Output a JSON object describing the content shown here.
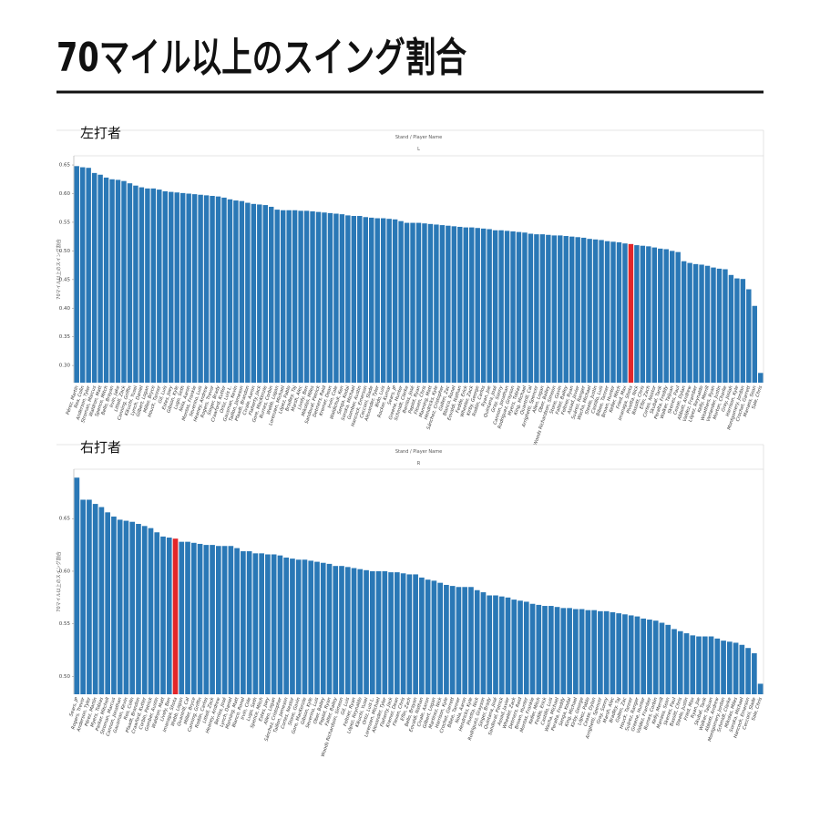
{
  "title": "70マイル以上のスイング割合",
  "chart_data": [
    {
      "type": "bar",
      "panel_label": "左打者",
      "header": "Stand / Player Name",
      "header_value": "L",
      "ylabel": "70マイル以上のスイング割合",
      "color": "#2a78b6",
      "highlight": "Imanaga, Shota",
      "highlight_color": "#e3262a",
      "ylim": [
        0.27,
        0.666
      ],
      "yticks": [
        {
          "value": 0.3,
          "label": "0.30"
        },
        0.35,
        {
          "value": 0.4,
          "label": "0.40"
        },
        0.45,
        {
          "value": 0.5,
          "label": "0.50"
        },
        0.55,
        {
          "value": 0.6,
          "label": "0.60"
        },
        0.65
      ],
      "categories": [
        "Pérez, Martín",
        "Rea, Colin",
        "Anderson, Tyler",
        "Stroman, Marcus",
        "Waldron, Matt",
        "Spence, Mitch",
        "Bello, Brayan",
        "Irvin, Jake",
        "Littell, Zack",
        "Canning, Griffin",
        "Kikuchi, Yusei",
        "Lynch, Daniel",
        "Gilbert, Logan",
        "Miller, Bryce",
        "Houck, Tanner",
        "Gil, Luis",
        "Estes, Joey",
        "Gibson, Kyle",
        "Lugo, Seth",
        "Nola, Aaron",
        "Montas, Frankie",
        "Severino, Luis",
        "Heaney, Andrew",
        "Rogers, Trevor",
        "Singer, Brady",
        "Crawford, Kutter",
        "Ortiz, Luis L.",
        "Gausman, Kevin",
        "Taillon, Jameson",
        "Pfaadt, Brandon",
        "Civale, Aaron",
        "Flaherty, Jack",
        "Gore, MacKenzie",
        "Burnes, Corbin",
        "Webb, Logan",
        "Lorenzen, Michael",
        "López, Pablo",
        "Bradley, Taj",
        "Marsh, Alec",
        "Lively, Ben",
        "Mikolas, Miles",
        "Sandoval, Patrick",
        "Detmers, Reid",
        "Kremer, Dean",
        "Irvin, Cole",
        "Waldichuk, Ken",
        "Senga, Kodai",
        "Soroka, Michael",
        "Gomber, Austin",
        "Hancock, Emerson",
        "Cecconi, Slade",
        "Alexander, Tyler",
        "Bido, Luis",
        "Rocker, Kumar",
        "Sears, JP",
        "Greene, Hunter",
        "Schmidt, Clarke",
        "Berríos, José",
        "Pepiot, Ryan",
        "Flexen, Chris",
        "Manning, Matt",
        "Hendricks, Kyle",
        "Sánchez, Cristopher",
        "Gallen, Zac",
        "Blanco, Ronel",
        "Eovaldi, Nathan",
        "Fedde, Erick",
        "Wheeler, Zack",
        "Kirby, George",
        "Rodón, Carlos",
        "Ryan, Joe",
        "Quintana, José",
        "Gray, Sonny",
        "Cannon, Jonathan",
        "Rodriguez, Grayson",
        "Myers, Tobias",
        "King, Michael",
        "Quantrill, Cal",
        "Arrighetti, Spencer",
        "Allen, Logan",
        "Ober, Bailey",
        "Woods Richardson, Simeon",
        "Stone, Gavin",
        "Falter, Bailey",
        "Feltner, Ryan",
        "Assad, Javier",
        "Suárez, Ranger",
        "Wacha, Michael",
        "Steele, Justin",
        "Castillo, Luis",
        "Bibee, Tanner",
        "Brown, Hunter",
        "Keller, Mitch",
        "Fried, Max",
        "Imanaga, Shota",
        "Pivetta, Nick",
        "Bassitt, Chris",
        "Eflin, Zach",
        "Cortes, Nestor",
        "Skubal, Tarik",
        "Peralta, Freddy",
        "Walker, Taijuan",
        "Skenes, Paul",
        "Cease, Dylan",
        "Abbott, Andrew",
        "Valdez, Framber",
        "López, Reynaldo",
        "Kelly, Merrill",
        "Weathers, Ryan",
        "Verlander, Justin",
        "Morton, Charlie",
        "Gray, Josiah",
        "Harrison, Kyle",
        "Montgomery, Jordan",
        "Crochet, Garrett",
        "Manaea, Sean",
        "Sale, Chris"
      ],
      "values": [
        0.648,
        0.646,
        0.645,
        0.636,
        0.633,
        0.628,
        0.625,
        0.624,
        0.622,
        0.618,
        0.614,
        0.611,
        0.609,
        0.609,
        0.607,
        0.604,
        0.603,
        0.602,
        0.601,
        0.6,
        0.599,
        0.598,
        0.597,
        0.596,
        0.595,
        0.593,
        0.59,
        0.588,
        0.587,
        0.584,
        0.582,
        0.581,
        0.58,
        0.577,
        0.572,
        0.571,
        0.571,
        0.571,
        0.57,
        0.57,
        0.569,
        0.568,
        0.567,
        0.566,
        0.565,
        0.564,
        0.562,
        0.561,
        0.561,
        0.559,
        0.558,
        0.557,
        0.557,
        0.556,
        0.555,
        0.552,
        0.549,
        0.549,
        0.549,
        0.548,
        0.547,
        0.546,
        0.545,
        0.544,
        0.543,
        0.542,
        0.541,
        0.541,
        0.54,
        0.539,
        0.538,
        0.536,
        0.536,
        0.535,
        0.534,
        0.533,
        0.532,
        0.53,
        0.529,
        0.529,
        0.528,
        0.527,
        0.527,
        0.526,
        0.525,
        0.524,
        0.523,
        0.521,
        0.52,
        0.519,
        0.517,
        0.516,
        0.515,
        0.513,
        0.512,
        0.51,
        0.509,
        0.508,
        0.506,
        0.504,
        0.503,
        0.5,
        0.498,
        0.482,
        0.479,
        0.477,
        0.476,
        0.474,
        0.471,
        0.469,
        0.468,
        0.458,
        0.452,
        0.451,
        0.433,
        0.404,
        0.287
      ]
    },
    {
      "type": "bar",
      "panel_label": "右打者",
      "header": "Stand / Player Name",
      "header_value": "R",
      "ylabel": "70マイル以上のスイング割合",
      "color": "#2a78b6",
      "highlight": "Imanaga, Shota",
      "highlight_color": "#e3262a",
      "ylim": [
        0.483,
        0.697
      ],
      "yticks": [
        {
          "value": 0.5,
          "label": "0.50"
        },
        0.55,
        {
          "value": 0.6,
          "label": "0.60"
        },
        0.65
      ],
      "categories": [
        "Sears, JP",
        "Rogers, Trevor",
        "Anderson, Tyler",
        "Pérez, Martín",
        "Myers, Tobias",
        "Parker, Mitchell",
        "Stroman, Marcus",
        "Cannon, Jonathan",
        "Gausman, Kevin",
        "Rea, Colin",
        "Pfaadt, Brandon",
        "Crawford, Kutter",
        "Corbin, Patrick",
        "Gomber, Austin",
        "Waldron, Matt",
        "Lively, Ben",
        "Imanaga, Shota",
        "Webb, Logan",
        "Quantrill, Cal",
        "Miller, Bryce",
        "Canning, Griffin",
        "Rodón, Carlos",
        "Littell, Zack",
        "Heaney, Andrew",
        "Berríos, José",
        "Lynch, Daniel",
        "Manning, Matt",
        "Blanco, Ronel",
        "Irvin, Cole",
        "Lugo, Seth",
        "Spence, Mitch",
        "Estes, Joey",
        "Allen, Logan",
        "Sánchez, Cristopher",
        "Taillon, Jameson",
        "Cortes, Nestor",
        "Stone, Gavin",
        "Gore, MacKenzie",
        "Gibson, Kyle",
        "Severino, Luis",
        "Ober, Bailey",
        "Pepiot, Ryan",
        "Falter, Bailey",
        "Woods Richardson, Simeon",
        "Gil, Luis",
        "Feltner, Ryan",
        "López, Reynaldo",
        "Kikuchi, Yusei",
        "Ortiz, Luis L.",
        "Lorenzen, Michael",
        "Alexander, Tyler",
        "Flaherty, Jack",
        "Kremer, Dean",
        "Flexen, Chris",
        "Eflin, Zach",
        "Bello, Brayan",
        "Eovaldi, Nathan",
        "Civale, Aaron",
        "Gilbert, Logan",
        "Martinez, Nick",
        "Harrison, Kyle",
        "Crochet, Garrett",
        "Bibee, Tanner",
        "Nola, Aaron",
        "Hendricks, Kyle",
        "Pivetta, Nick",
        "Rodriguez, Grayson",
        "Singer, Brady",
        "Quintana, José",
        "Sandoval, Patrick",
        "Assad, Javier",
        "Wheeler, Zack",
        "Detmers, Reid",
        "Brown, Hunter",
        "Montas, Frankie",
        "Keller, Mitch",
        "Fedde, Erick",
        "Castillo, Luis",
        "Wacha, Michael",
        "Peralta, Freddy",
        "Senga, Kodai",
        "King, Michael",
        "Kirby, George",
        "López, Pablo",
        "Cease, Dylan",
        "Arrighetti, Spencer",
        "Gray, Sonny",
        "Marsh, Alec",
        "Bradley, Taj",
        "Gallen, Zac",
        "Houck, Tanner",
        "Suárez, Ranger",
        "Greene, Hunter",
        "Valdez, Framber",
        "Burnes, Corbin",
        "Kelly, Merrill",
        "Manaea, Sean",
        "Skenes, Paul",
        "Bassitt, Chris",
        "Steele, Justin",
        "Fried, Max",
        "Ryan, Joe",
        "Skubal, Tarik",
        "Walker, Taijuan",
        "Abbott, Andrew",
        "Montgomery, Jordan",
        "Schmidt, Clarke",
        "Mikolas, Miles",
        "Soroka, Michael",
        "Hancock, Emerson",
        "Cecconi, Slade",
        "Sale, Chris"
      ],
      "values": [
        0.689,
        0.668,
        0.668,
        0.664,
        0.661,
        0.656,
        0.652,
        0.649,
        0.648,
        0.647,
        0.645,
        0.643,
        0.641,
        0.637,
        0.633,
        0.632,
        0.631,
        0.628,
        0.628,
        0.627,
        0.626,
        0.625,
        0.625,
        0.624,
        0.624,
        0.624,
        0.622,
        0.619,
        0.619,
        0.617,
        0.617,
        0.616,
        0.616,
        0.615,
        0.613,
        0.612,
        0.611,
        0.611,
        0.61,
        0.609,
        0.608,
        0.607,
        0.605,
        0.605,
        0.604,
        0.603,
        0.602,
        0.601,
        0.6,
        0.6,
        0.6,
        0.599,
        0.599,
        0.598,
        0.597,
        0.597,
        0.594,
        0.592,
        0.591,
        0.589,
        0.587,
        0.586,
        0.585,
        0.585,
        0.585,
        0.582,
        0.58,
        0.577,
        0.577,
        0.576,
        0.575,
        0.573,
        0.572,
        0.571,
        0.569,
        0.568,
        0.567,
        0.567,
        0.566,
        0.565,
        0.565,
        0.564,
        0.564,
        0.563,
        0.563,
        0.562,
        0.562,
        0.561,
        0.56,
        0.559,
        0.558,
        0.557,
        0.555,
        0.554,
        0.553,
        0.551,
        0.549,
        0.545,
        0.543,
        0.541,
        0.539,
        0.538,
        0.538,
        0.538,
        0.536,
        0.534,
        0.533,
        0.532,
        0.53,
        0.527,
        0.522,
        0.493
      ]
    }
  ]
}
